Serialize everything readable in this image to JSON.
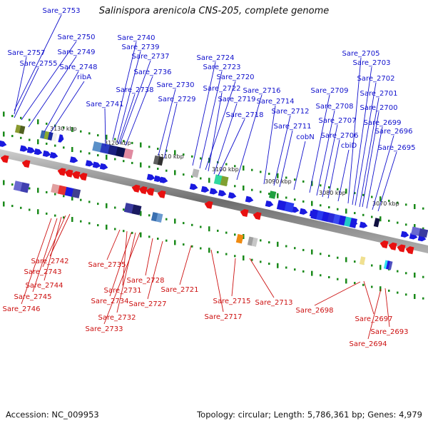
{
  "title": "Salinispora arenicola CNS-205, complete genome",
  "accession_text": "Accession: NC_009953",
  "summary_text": "Topology: circular; Length: 5,786,361 bp; Genes: 4,979",
  "colors": {
    "forward_label": "#1010cc",
    "reverse_label": "#cc1010",
    "forward_gene": "#1a1ae0",
    "reverse_gene": "#e81010",
    "tick": "#1a8a1a",
    "backbone": "#777777"
  },
  "scale_labels": [
    "3130 kbp",
    "3120 kbp",
    "3110 kbp",
    "3100 kbp",
    "3090 kbp",
    "3080 kbp",
    "3070 kbp"
  ],
  "forward_genes": [
    "Sare_2753",
    "Sare_2750",
    "Sare_2757",
    "Sare_2749",
    "Sare_2755",
    "Sare_2748",
    "ribA",
    "Sare_2740",
    "Sare_2739",
    "Sare_2737",
    "Sare_2736",
    "Sare_2738",
    "Sare_2741",
    "Sare_2730",
    "Sare_2729",
    "Sare_2724",
    "Sare_2723",
    "Sare_2720",
    "Sare_2722",
    "Sare_2719",
    "Sare_2716",
    "Sare_2718",
    "Sare_2714",
    "Sare_2712",
    "Sare_2711",
    "cobN",
    "Sare_2709",
    "Sare_2708",
    "Sare_2707",
    "Sare_2706",
    "cbiD",
    "Sare_2705",
    "Sare_2703",
    "Sare_2702",
    "Sare_2701",
    "Sare_2700",
    "Sare_2699",
    "Sare_2696",
    "Sare_2695"
  ],
  "reverse_genes": [
    "Sare_2742",
    "Sare_2743",
    "Sare_2744",
    "Sare_2745",
    "Sare_2746",
    "Sare_2735",
    "Sare_2731",
    "Sare_2734",
    "Sare_2732",
    "Sare_2733",
    "Sare_2728",
    "Sare_2727",
    "Sare_2721",
    "Sare_2717",
    "Sare_2715",
    "Sare_2713",
    "Sare_2698",
    "Sare_2697",
    "Sare_2694",
    "Sare_2693"
  ]
}
